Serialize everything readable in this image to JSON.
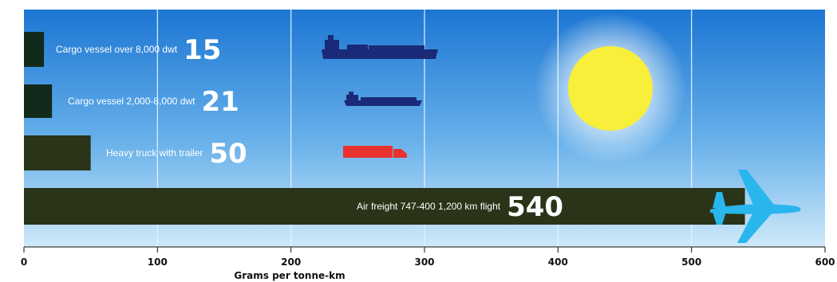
{
  "chart_data": {
    "type": "bar",
    "orientation": "horizontal",
    "categories": [
      "Cargo vessel over 8,000 dwt",
      "Cargo vessel 2,000-8,000 dwt",
      "Heavy truck with trailer",
      "Air freight 747-400 1,200 km flight"
    ],
    "values": [
      15,
      21,
      50,
      540
    ],
    "value_labels": [
      "15",
      "21",
      "50",
      "540"
    ],
    "xlabel": "Grams per tonne-km",
    "xlim": [
      0,
      600
    ],
    "xticks": [
      0,
      100,
      200,
      300,
      400,
      500,
      600
    ],
    "xtick_labels": [
      "0",
      "100",
      "200",
      "300",
      "400",
      "500",
      "600"
    ],
    "grid": true,
    "icons": [
      "ship-icon",
      "ship-icon",
      "truck-icon",
      "airplane-icon",
      "sun-icon"
    ],
    "colors": {
      "bar": "#2a3418",
      "bar_dark": "#122a1c",
      "sky_top": "#1c76d3",
      "sky_bottom": "#cfe9fa",
      "ship": "#1b2a78",
      "truck": "#e8322f",
      "plane": "#29b6ec",
      "sun": "#f7ef3a"
    }
  }
}
